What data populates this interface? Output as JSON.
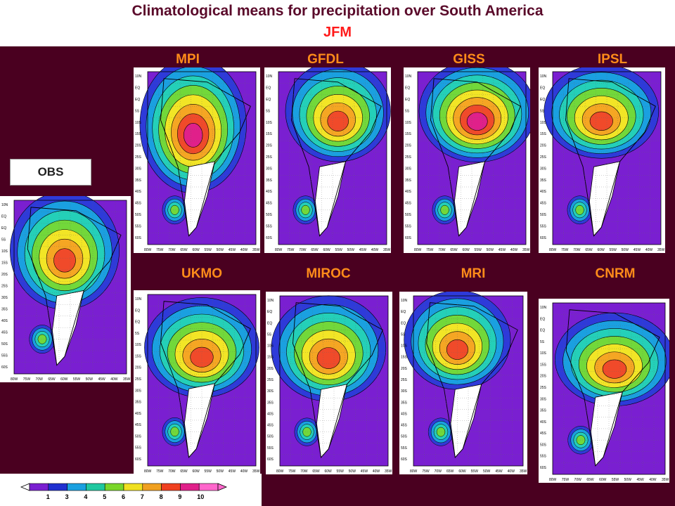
{
  "header": {
    "title": "Climatological means for precipitation over South America",
    "season": "JFM"
  },
  "obs_label": "OBS",
  "models_top": [
    "MPI",
    "GFDL",
    "GISS",
    "IPSL"
  ],
  "models_bottom": [
    "UKMO",
    "MIROC",
    "MRI",
    "CNRM"
  ],
  "lat_ticks": [
    "10N",
    "EQ",
    "EQ",
    "5S",
    "10S",
    "15S",
    "20S",
    "25S",
    "30S",
    "35S",
    "40S",
    "45S",
    "50S",
    "55S",
    "60S"
  ],
  "lon_ticks": [
    "80W",
    "75W",
    "70W",
    "65W",
    "60W",
    "55W",
    "50W",
    "45W",
    "40W",
    "35W"
  ],
  "colorbar": {
    "labels": [
      "1",
      "3",
      "4",
      "5",
      "6",
      "7",
      "8",
      "9",
      "10"
    ],
    "colors": [
      "#7a1fd1",
      "#2030d0",
      "#1aa0e0",
      "#20c8a0",
      "#7ad62a",
      "#f0e020",
      "#f0a020",
      "#f04020",
      "#e0208a",
      "#ff66cc"
    ]
  },
  "palette": {
    "level1": "#7a1fd1",
    "level2": "#2e3ad9",
    "level3": "#1aa0e0",
    "level4": "#24d0b8",
    "level5": "#72d83a",
    "level6": "#f2e526",
    "level7": "#f5a623",
    "level8": "#f04a2a",
    "level9": "#e0208a",
    "land_gap": "#ffffff"
  }
}
